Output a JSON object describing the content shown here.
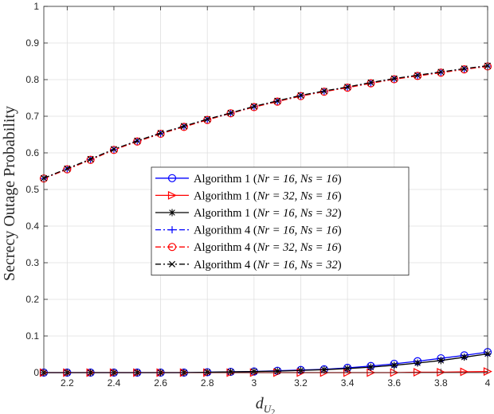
{
  "chart_data": {
    "type": "line",
    "xlabel": "d",
    "xlabel_sub": "U",
    "xlabel_subsub": "2",
    "ylabel": "Secrecy Outage Probability",
    "xlim": [
      2.1,
      4.0
    ],
    "ylim": [
      0,
      1
    ],
    "xticks": [
      2.2,
      2.4,
      2.6,
      2.8,
      3.0,
      3.2,
      3.4,
      3.6,
      3.8,
      4.0
    ],
    "xtick_labels": [
      "2.2",
      "2.4",
      "2.6",
      "2.8",
      "3",
      "3.2",
      "3.4",
      "3.6",
      "3.8",
      "4"
    ],
    "yticks": [
      0,
      0.1,
      0.2,
      0.3,
      0.4,
      0.5,
      0.6,
      0.7,
      0.8,
      0.9,
      1.0
    ],
    "ytick_labels": [
      "0",
      "0.1",
      "0.2",
      "0.3",
      "0.4",
      "0.5",
      "0.6",
      "0.7",
      "0.8",
      "0.9",
      "1"
    ],
    "grid": true,
    "legend_position": "center",
    "x": [
      2.1,
      2.2,
      2.3,
      2.4,
      2.5,
      2.6,
      2.7,
      2.8,
      2.9,
      3.0,
      3.1,
      3.2,
      3.3,
      3.4,
      3.5,
      3.6,
      3.7,
      3.8,
      3.9,
      4.0
    ],
    "series": [
      {
        "name_prefix": "Algorithm 1 (",
        "name_math": "Nr = 16, Ns = 16",
        "name_suffix": ")",
        "color": "#0000ff",
        "dash": "solid",
        "marker": "circle",
        "values": [
          0,
          0,
          0,
          0,
          0,
          0,
          0,
          0.001,
          0.002,
          0.003,
          0.005,
          0.007,
          0.009,
          0.013,
          0.018,
          0.024,
          0.031,
          0.039,
          0.047,
          0.056
        ]
      },
      {
        "name_prefix": "Algorithm 1 (",
        "name_math": "Nr = 32, Ns = 16",
        "name_suffix": ")",
        "color": "#ff0000",
        "dash": "solid",
        "marker": "triangle-right",
        "values": [
          0,
          0,
          0,
          0,
          0,
          0,
          0,
          0,
          0,
          0,
          0,
          0,
          0,
          0,
          0,
          0,
          0.001,
          0.001,
          0.002,
          0.003
        ]
      },
      {
        "name_prefix": "Algorithm 1 (",
        "name_math": "Nr = 16, Ns = 32",
        "name_suffix": ")",
        "color": "#000000",
        "dash": "solid",
        "marker": "asterisk",
        "values": [
          0,
          0,
          0,
          0,
          0,
          0,
          0,
          0.001,
          0.002,
          0.003,
          0.004,
          0.006,
          0.008,
          0.011,
          0.015,
          0.02,
          0.026,
          0.033,
          0.042,
          0.051
        ]
      },
      {
        "name_prefix": "Algorithm 4 (",
        "name_math": "Nr = 16, Ns = 16",
        "name_suffix": ")",
        "color": "#0000ff",
        "dash": "dashdot",
        "marker": "plus",
        "values": [
          0.53,
          0.556,
          0.582,
          0.609,
          0.632,
          0.653,
          0.672,
          0.691,
          0.708,
          0.726,
          0.741,
          0.756,
          0.768,
          0.779,
          0.791,
          0.802,
          0.811,
          0.82,
          0.829,
          0.837
        ]
      },
      {
        "name_prefix": "Algorithm 4 (",
        "name_math": "Nr = 32, Ns = 16",
        "name_suffix": ")",
        "color": "#ff0000",
        "dash": "dashdot",
        "marker": "circle",
        "values": [
          0.53,
          0.555,
          0.581,
          0.608,
          0.631,
          0.652,
          0.671,
          0.69,
          0.708,
          0.725,
          0.74,
          0.755,
          0.767,
          0.778,
          0.79,
          0.801,
          0.81,
          0.819,
          0.828,
          0.836
        ]
      },
      {
        "name_prefix": "Algorithm 4 (",
        "name_math": "Nr = 16, Ns = 32",
        "name_suffix": ")",
        "color": "#000000",
        "dash": "dashdot",
        "marker": "x",
        "values": [
          0.531,
          0.557,
          0.583,
          0.61,
          0.633,
          0.654,
          0.673,
          0.692,
          0.709,
          0.727,
          0.742,
          0.757,
          0.769,
          0.78,
          0.792,
          0.803,
          0.812,
          0.821,
          0.83,
          0.838
        ]
      }
    ]
  }
}
